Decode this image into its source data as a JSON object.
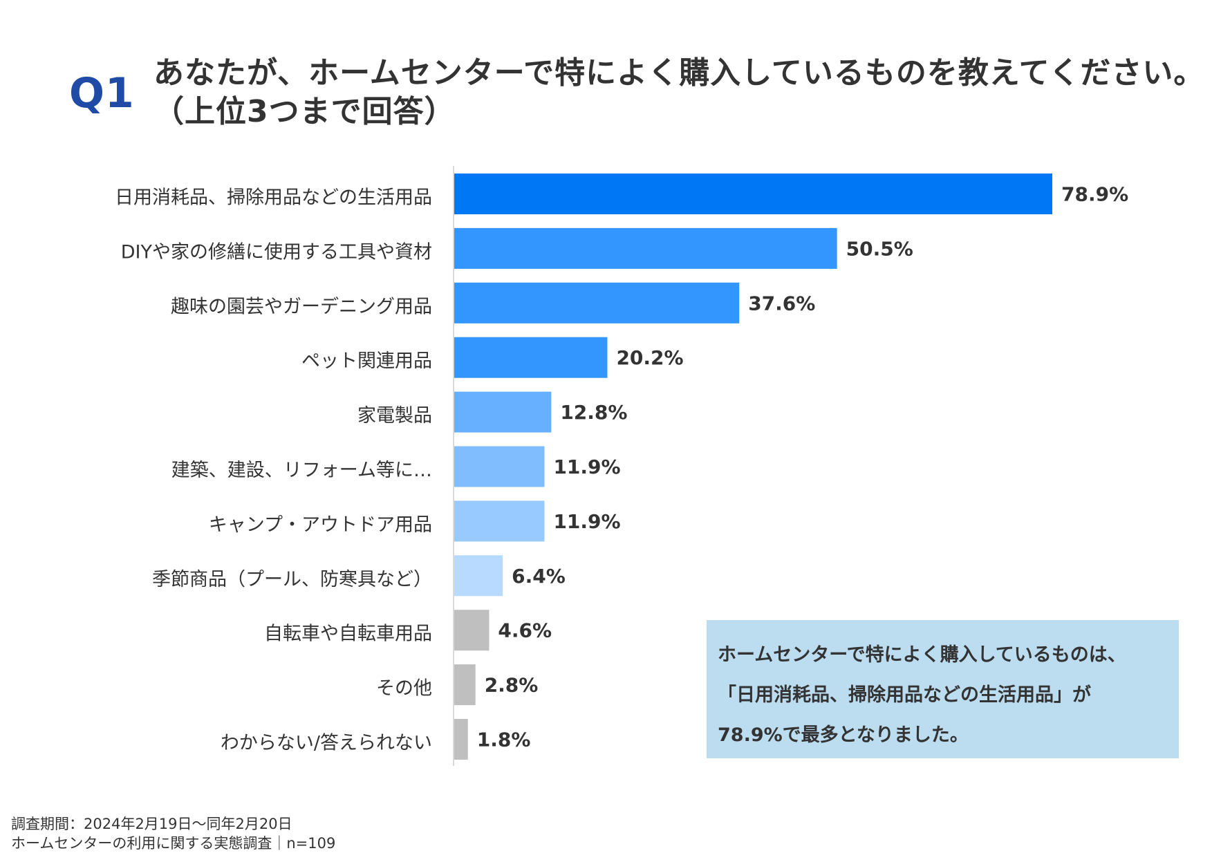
{
  "header": {
    "q_label": "Q1",
    "title_line1": "あなたが、ホームセンターで特によく購入しているものを教えてください。",
    "title_line2": "（上位3つまで回答）"
  },
  "chart_data": {
    "type": "bar",
    "orientation": "horizontal",
    "categories": [
      "日用消耗品、掃除用品などの生活用品",
      "DIYや家の修繕に使用する工具や資材",
      "趣味の園芸やガーデニング用品",
      "ペット関連用品",
      "家電製品",
      "建築、建設、リフォーム等に…",
      "キャンプ・アウトドア用品",
      "季節商品（プール、防寒具など）",
      "自転車や自転車用品",
      "その他",
      "わからない/答えられない"
    ],
    "values": [
      78.9,
      50.5,
      37.6,
      20.2,
      12.8,
      11.9,
      11.9,
      6.4,
      4.6,
      2.8,
      1.8
    ],
    "value_labels": [
      "78.9%",
      "50.5%",
      "37.6%",
      "20.2%",
      "12.8%",
      "11.9%",
      "11.9%",
      "6.4%",
      "4.6%",
      "2.8%",
      "1.8%"
    ],
    "colors": [
      "#0078f5",
      "#3396ff",
      "#3396ff",
      "#3396ff",
      "#66b0ff",
      "#80bdff",
      "#99caff",
      "#b8daff",
      "#bfbfbf",
      "#bfbfbf",
      "#bfbfbf"
    ],
    "xlim": [
      0,
      100
    ],
    "grid": false,
    "legend": "none"
  },
  "note": {
    "line1": "ホームセンターで特によく購入しているものは、",
    "line2": "「日用消耗品、掃除用品などの生活用品」が",
    "line3": "78.9%で最多となりました。"
  },
  "footer": {
    "period": "調査期間：2024年2月19日～同年2月20日",
    "survey": "ホームセンターの利用に関する実態調査｜n=109"
  }
}
